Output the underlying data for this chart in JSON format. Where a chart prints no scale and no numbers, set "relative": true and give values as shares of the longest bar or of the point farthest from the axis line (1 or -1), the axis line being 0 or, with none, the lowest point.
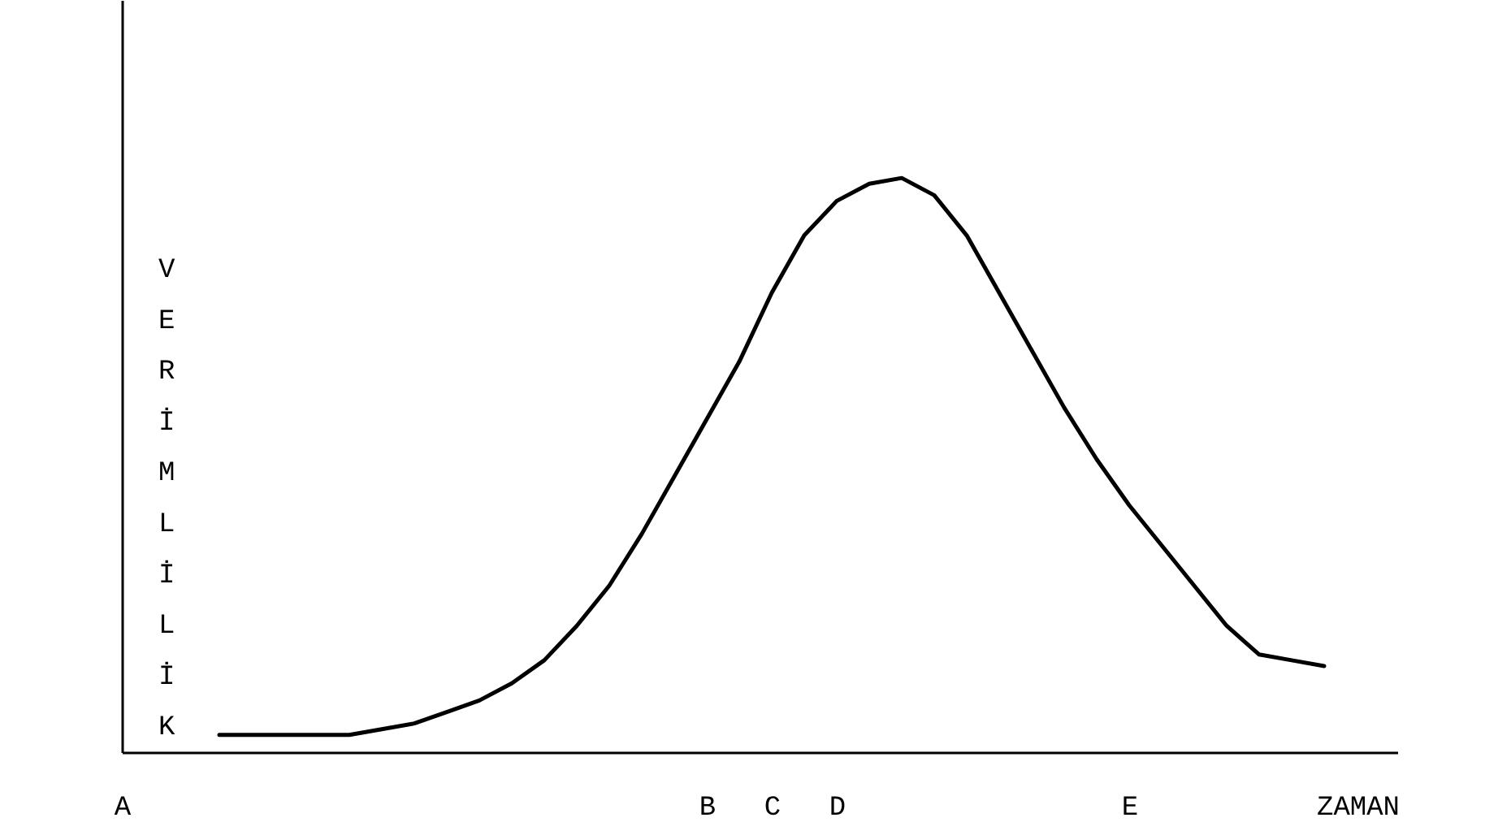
{
  "chart_data": {
    "type": "line",
    "relative": true,
    "xlabel": "ZAMAN",
    "ylabel": "VERİMLİLİK",
    "categories": [
      "A",
      null,
      null,
      null,
      null,
      null,
      null,
      null,
      null,
      null,
      null,
      null,
      null,
      null,
      null,
      null,
      null,
      null,
      "B",
      null,
      "C",
      null,
      "D",
      null,
      null,
      null,
      null,
      null,
      null,
      null,
      null,
      "E",
      null,
      null,
      null,
      null,
      null,
      null,
      null
    ],
    "series": [
      {
        "color": "#000000",
        "values": [
          null,
          null,
          null,
          0.03,
          0.03,
          0.03,
          0.03,
          0.03,
          0.04,
          0.05,
          0.07,
          0.09,
          0.12,
          0.16,
          0.22,
          0.29,
          0.38,
          0.48,
          0.58,
          0.68,
          0.8,
          0.9,
          0.96,
          0.99,
          1,
          0.97,
          0.9,
          0.8,
          0.7,
          0.6,
          0.51,
          0.43,
          0.36,
          0.29,
          0.22,
          0.17,
          0.16,
          0.15,
          null
        ]
      }
    ]
  }
}
